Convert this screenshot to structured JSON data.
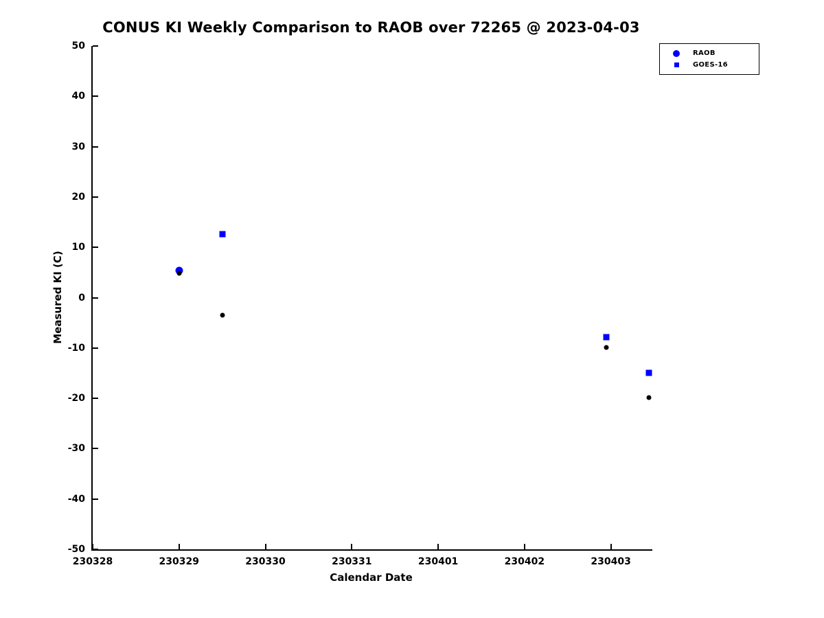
{
  "chart_data": {
    "type": "scatter",
    "title": "CONUS KI Weekly Comparison to RAOB over 72265 @ 2023-04-03",
    "xlabel": "Calendar Date",
    "ylabel": "Measured KI (C)",
    "x_tick_labels": [
      "230328",
      "230329",
      "230330",
      "230331",
      "230401",
      "230402",
      "230403"
    ],
    "x_tick_positions": [
      0,
      1,
      2,
      3,
      4,
      5,
      6
    ],
    "x_range": [
      0,
      6.48
    ],
    "ylim": [
      -50,
      50
    ],
    "y_ticks": [
      50,
      40,
      30,
      20,
      10,
      0,
      -10,
      -20,
      -30,
      -40,
      -50
    ],
    "grid": false,
    "legend_position": "top-right",
    "series": [
      {
        "name": "RAOB",
        "marker": "circle",
        "color": "#0000ff",
        "size": 11,
        "points": [
          [
            1.0,
            5.4
          ]
        ]
      },
      {
        "name": "GOES-16",
        "marker": "square",
        "color": "#0000ff",
        "size": 9,
        "points": [
          [
            1.5,
            12.6
          ],
          [
            5.95,
            -7.9
          ],
          [
            6.44,
            -14.9
          ]
        ]
      },
      {
        "name": "black-dot-series",
        "marker": "circle",
        "color": "#000000",
        "size": 7,
        "points": [
          [
            1.0,
            4.9
          ],
          [
            1.5,
            -3.5
          ],
          [
            5.95,
            -9.9
          ],
          [
            6.44,
            -19.9
          ]
        ]
      }
    ],
    "legend_entries": [
      {
        "label": "RAOB",
        "marker": "circle",
        "color": "#0000ff",
        "size": 10
      },
      {
        "label": "GOES-16",
        "marker": "square",
        "color": "#0000ff",
        "size": 7
      }
    ]
  }
}
